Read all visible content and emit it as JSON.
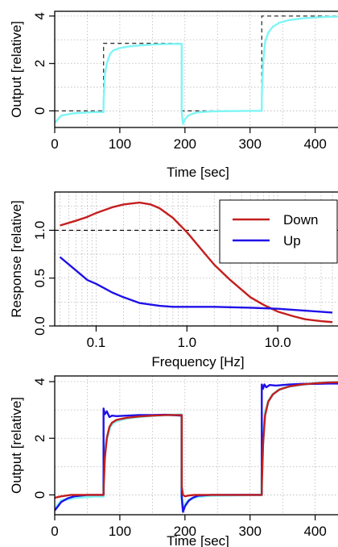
{
  "colors": {
    "cyan": "#7ff5f5",
    "red": "#c41e1e",
    "blue": "#1f10e8",
    "dashed": "#333333",
    "grid": "#b8b8b8"
  },
  "chart_data": [
    {
      "type": "line",
      "title": "",
      "xlabel": "Time [sec]",
      "ylabel": "Output [relative]",
      "xlim": [
        0,
        440
      ],
      "ylim": [
        -0.7,
        4.2
      ],
      "xticks": [
        0,
        100,
        200,
        300,
        400
      ],
      "xtick_labels": [
        "0",
        "100",
        "200",
        "300",
        "400"
      ],
      "yticks": [
        0,
        2,
        4
      ],
      "ytick_labels": [
        "0",
        "2",
        "4"
      ],
      "grid": true,
      "step_input": {
        "x": [
          0,
          75,
          75,
          195,
          195,
          318,
          318,
          440,
          440
        ],
        "y": [
          0,
          0,
          2.85,
          2.85,
          0,
          0,
          4.0,
          4.0,
          0
        ]
      },
      "series": [
        {
          "x": [
            0,
            10,
            30,
            60,
            75,
            75,
            77,
            80,
            85,
            90,
            100,
            115,
            130,
            150,
            170,
            195,
            195,
            197,
            200,
            205,
            212,
            220,
            240,
            270,
            300,
            318,
            318,
            320,
            323,
            328,
            335,
            345,
            360,
            380,
            400,
            420,
            440,
            440,
            442,
            446
          ],
          "y": [
            -0.5,
            -0.2,
            -0.1,
            -0.05,
            -0.05,
            0.4,
            1.5,
            2.0,
            2.4,
            2.55,
            2.65,
            2.72,
            2.76,
            2.8,
            2.82,
            2.83,
            -0.05,
            -0.55,
            -0.35,
            -0.2,
            -0.12,
            -0.06,
            -0.02,
            -0.01,
            0.0,
            0.0,
            0.6,
            2.0,
            2.9,
            3.3,
            3.55,
            3.72,
            3.83,
            3.9,
            3.94,
            3.97,
            3.98,
            0.0,
            -0.55,
            -0.4
          ]
        }
      ]
    },
    {
      "type": "line",
      "title": "",
      "xlabel": "Frequency [Hz]",
      "ylabel": "Response [relative]",
      "xscale": "log",
      "xlim": [
        0.035,
        50
      ],
      "ylim": [
        0.0,
        1.4
      ],
      "xticks": [
        0.1,
        1.0,
        10.0
      ],
      "xtick_labels": [
        "0.1",
        "1.0",
        "10.0"
      ],
      "yticks": [
        0.0,
        0.5,
        1.0
      ],
      "ytick_labels": [
        "0.0",
        "0.5",
        "1.0"
      ],
      "reference_line": 1.0,
      "grid": true,
      "legend_placement": "top-right",
      "series": [
        {
          "name": "Down",
          "color_key": "red",
          "x": [
            0.04,
            0.06,
            0.08,
            0.1,
            0.15,
            0.2,
            0.3,
            0.4,
            0.5,
            0.7,
            1.0,
            1.5,
            2,
            3,
            5,
            7,
            10,
            15,
            20,
            30,
            40
          ],
          "y": [
            1.05,
            1.1,
            1.14,
            1.18,
            1.24,
            1.27,
            1.29,
            1.27,
            1.23,
            1.13,
            0.98,
            0.78,
            0.64,
            0.48,
            0.3,
            0.22,
            0.15,
            0.1,
            0.07,
            0.05,
            0.04
          ]
        },
        {
          "name": "Up",
          "color_key": "blue",
          "x": [
            0.04,
            0.06,
            0.08,
            0.1,
            0.12,
            0.15,
            0.2,
            0.3,
            0.5,
            0.7,
            1.0,
            2,
            5,
            10,
            20,
            40
          ],
          "y": [
            0.72,
            0.58,
            0.48,
            0.44,
            0.4,
            0.35,
            0.3,
            0.24,
            0.21,
            0.2,
            0.2,
            0.2,
            0.19,
            0.18,
            0.16,
            0.14
          ]
        }
      ]
    },
    {
      "type": "line",
      "title": "",
      "xlabel": "Time [sec]",
      "ylabel": "Output [relative]",
      "xlim": [
        0,
        440
      ],
      "ylim": [
        -0.7,
        4.2
      ],
      "xticks": [
        0,
        100,
        200,
        300,
        400
      ],
      "xtick_labels": [
        "0",
        "100",
        "200",
        "300",
        "400"
      ],
      "yticks": [
        0,
        2,
        4
      ],
      "ytick_labels": [
        "0",
        "2",
        "4"
      ],
      "grid": true,
      "series": [
        {
          "color_key": "cyan",
          "x": [
            0,
            10,
            30,
            60,
            75,
            75,
            77,
            80,
            85,
            90,
            100,
            115,
            130,
            150,
            170,
            195,
            195,
            197,
            200,
            205,
            212,
            220,
            240,
            270,
            300,
            318,
            318,
            320,
            323,
            328,
            335,
            345,
            360,
            380,
            400,
            420,
            440
          ],
          "y": [
            -0.5,
            -0.2,
            -0.1,
            -0.05,
            -0.05,
            0.4,
            1.5,
            2.0,
            2.4,
            2.55,
            2.65,
            2.72,
            2.76,
            2.8,
            2.82,
            2.83,
            -0.05,
            -0.55,
            -0.35,
            -0.2,
            -0.12,
            -0.06,
            -0.02,
            -0.01,
            0.0,
            0.0,
            0.6,
            2.0,
            2.9,
            3.3,
            3.55,
            3.72,
            3.83,
            3.9,
            3.94,
            3.97,
            3.98
          ]
        },
        {
          "color_key": "blue",
          "x": [
            0,
            5,
            10,
            20,
            30,
            50,
            75,
            75,
            77,
            80,
            84,
            88,
            95,
            110,
            130,
            150,
            170,
            195,
            195,
            197,
            200,
            206,
            212,
            220,
            240,
            260,
            290,
            318,
            318,
            320,
            322,
            325,
            330,
            340,
            360,
            380,
            400,
            420,
            440
          ],
          "y": [
            -0.55,
            -0.4,
            -0.25,
            -0.12,
            -0.05,
            0.0,
            0.0,
            3.05,
            2.85,
            2.95,
            2.75,
            2.8,
            2.78,
            2.8,
            2.82,
            2.82,
            2.83,
            2.8,
            -0.05,
            -0.6,
            -0.4,
            -0.2,
            -0.1,
            -0.03,
            0.0,
            0.0,
            0.0,
            0.0,
            3.9,
            3.75,
            3.9,
            3.8,
            3.88,
            3.86,
            3.9,
            3.92,
            3.92,
            3.93,
            3.93
          ]
        },
        {
          "color_key": "red",
          "x": [
            0,
            10,
            25,
            50,
            75,
            75,
            77,
            80,
            84,
            88,
            95,
            110,
            130,
            150,
            170,
            195,
            195,
            197,
            200,
            206,
            215,
            230,
            260,
            290,
            318,
            318,
            320,
            323,
            328,
            335,
            345,
            360,
            380,
            400,
            420,
            440
          ],
          "y": [
            -0.1,
            -0.05,
            0.0,
            0.0,
            0.0,
            0.2,
            1.3,
            2.0,
            2.4,
            2.55,
            2.65,
            2.72,
            2.77,
            2.8,
            2.82,
            2.82,
            0.3,
            0.0,
            -0.05,
            -0.02,
            0.0,
            0.0,
            0.0,
            0.0,
            0.0,
            0.3,
            1.8,
            2.8,
            3.3,
            3.55,
            3.72,
            3.83,
            3.9,
            3.94,
            3.97,
            3.98
          ]
        }
      ]
    }
  ]
}
